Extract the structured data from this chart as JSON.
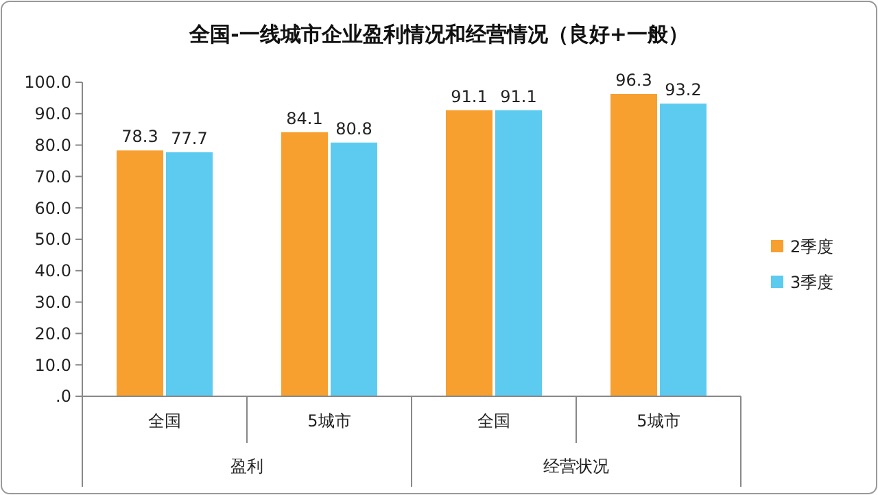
{
  "chart_data": {
    "type": "bar",
    "title": "全国-一线城市企业盈利情况和经营情况（良好+一般）",
    "categories": [
      "全国",
      "5城市",
      "全国",
      "5城市"
    ],
    "series": [
      {
        "name": "2季度",
        "color": "#f7a030",
        "values": [
          78.3,
          84.1,
          91.1,
          96.3
        ]
      },
      {
        "name": "3季度",
        "color": "#5ccbef",
        "values": [
          77.7,
          80.8,
          91.1,
          93.2
        ]
      }
    ],
    "annotations": [
      "盈利",
      "经营状况"
    ],
    "ylim": [
      0,
      100
    ],
    "yticks": [
      {
        "value": 0,
        "label": ".0"
      },
      {
        "value": 10,
        "label": "10.0"
      },
      {
        "value": 20,
        "label": "20.0"
      },
      {
        "value": 30,
        "label": "30.0"
      },
      {
        "value": 40,
        "label": "40.0"
      },
      {
        "value": 50,
        "label": "50.0"
      },
      {
        "value": 60,
        "label": "60.0"
      },
      {
        "value": 70,
        "label": "70.0"
      },
      {
        "value": 80,
        "label": "80.0"
      },
      {
        "value": 90,
        "label": "90.0"
      },
      {
        "value": 100,
        "label": "100.0"
      }
    ],
    "data_labels": true,
    "legend": "right",
    "grid": false
  }
}
